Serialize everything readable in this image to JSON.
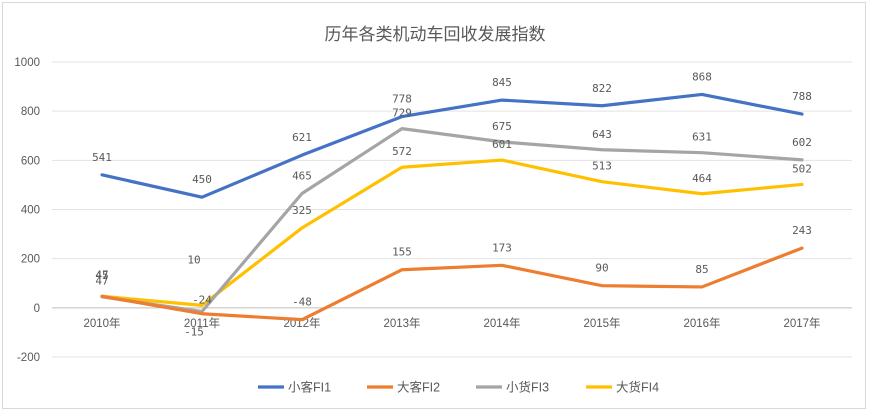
{
  "chart_data": {
    "type": "line",
    "title": "历年各类机动车回收发展指数",
    "categories": [
      "2010年",
      "2011年",
      "2012年",
      "2013年",
      "2014年",
      "2015年",
      "2016年",
      "2017年"
    ],
    "ylim": [
      -200,
      1000
    ],
    "yticks": [
      -200,
      0,
      200,
      400,
      600,
      800,
      1000
    ],
    "grid": true,
    "legend_position": "bottom",
    "series": [
      {
        "name": "小客FI1",
        "color": "#4472C4",
        "values": [
          541,
          450,
          621,
          778,
          845,
          822,
          868,
          788
        ]
      },
      {
        "name": "大客FI2",
        "color": "#ED7D31",
        "values": [
          47,
          -24,
          -48,
          155,
          173,
          90,
          85,
          243
        ]
      },
      {
        "name": "小货FI3",
        "color": "#A5A5A5",
        "values": [
          45,
          -15,
          465,
          729,
          675,
          643,
          631,
          602
        ]
      },
      {
        "name": "大货FI4",
        "color": "#FFC000",
        "values": [
          47,
          10,
          325,
          572,
          601,
          513,
          464,
          502
        ]
      }
    ]
  }
}
